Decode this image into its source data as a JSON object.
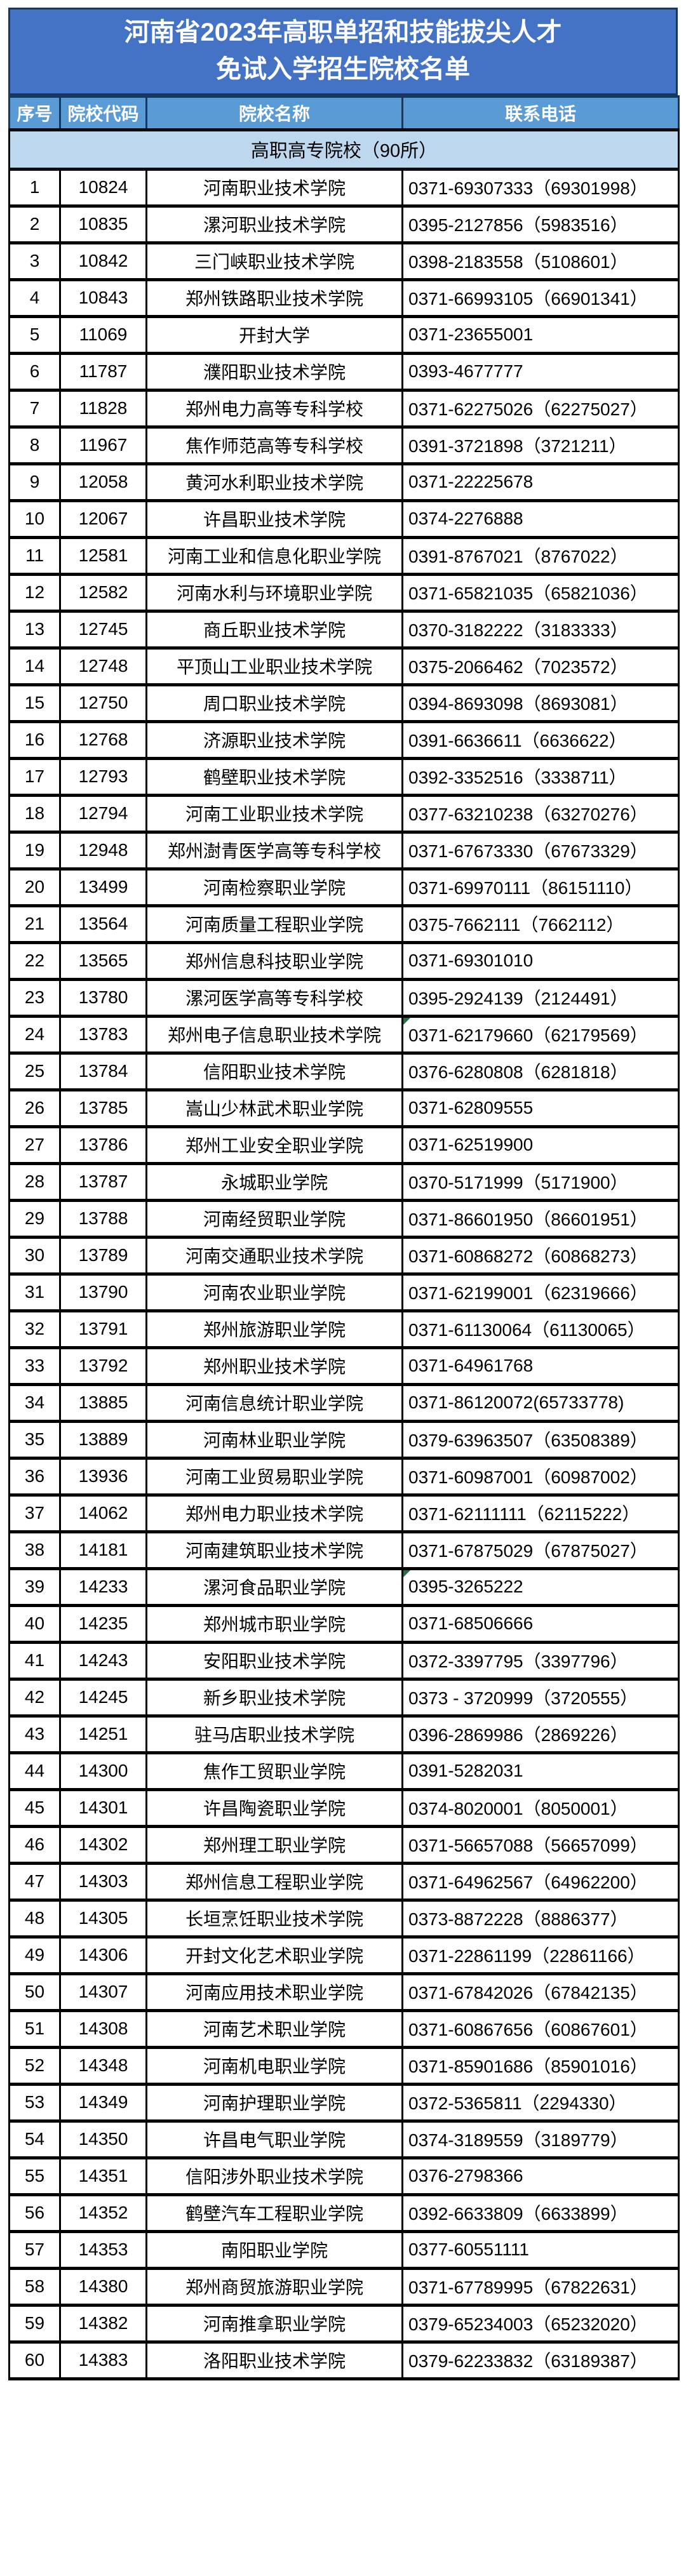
{
  "title": {
    "line1": "河南省2023年高职单招和技能拔尖人才",
    "line2": "免试入学招生院校名单"
  },
  "colors": {
    "title_bg": "#4472c4",
    "header_bg": "#5b9bd5",
    "section_bg": "#bdd7ee",
    "frame_border": "#17375e",
    "comment_marker": "#217346"
  },
  "table": {
    "headers": [
      "序号",
      "院校代码",
      "院校名称",
      "联系电话"
    ],
    "section_label": "高职高专院校（90所）",
    "rows": [
      {
        "no": "1",
        "code": "10824",
        "name": "河南职业技术学院",
        "phone": "0371-69307333（69301998）"
      },
      {
        "no": "2",
        "code": "10835",
        "name": "漯河职业技术学院",
        "phone": "0395-2127856（5983516）"
      },
      {
        "no": "3",
        "code": "10842",
        "name": "三门峡职业技术学院",
        "phone": "0398-2183558（5108601）"
      },
      {
        "no": "4",
        "code": "10843",
        "name": "郑州铁路职业技术学院",
        "phone": "0371-66993105（66901341）"
      },
      {
        "no": "5",
        "code": "11069",
        "name": "开封大学",
        "phone": "0371-23655001"
      },
      {
        "no": "6",
        "code": "11787",
        "name": "濮阳职业技术学院",
        "phone": "0393-4677777"
      },
      {
        "no": "7",
        "code": "11828",
        "name": "郑州电力高等专科学校",
        "phone": "0371-62275026（62275027）"
      },
      {
        "no": "8",
        "code": "11967",
        "name": "焦作师范高等专科学校",
        "phone": "0391-3721898（3721211）"
      },
      {
        "no": "9",
        "code": "12058",
        "name": "黄河水利职业技术学院",
        "phone": "0371-22225678"
      },
      {
        "no": "10",
        "code": "12067",
        "name": "许昌职业技术学院",
        "phone": "0374-2276888"
      },
      {
        "no": "11",
        "code": "12581",
        "name": "河南工业和信息化职业学院",
        "phone": "0391-8767021（8767022）"
      },
      {
        "no": "12",
        "code": "12582",
        "name": "河南水利与环境职业学院",
        "phone": "0371-65821035（65821036）"
      },
      {
        "no": "13",
        "code": "12745",
        "name": "商丘职业技术学院",
        "phone": "0370-3182222（3183333）"
      },
      {
        "no": "14",
        "code": "12748",
        "name": "平顶山工业职业技术学院",
        "phone": "0375-2066462（7023572）"
      },
      {
        "no": "15",
        "code": "12750",
        "name": "周口职业技术学院",
        "phone": "0394-8693098（8693081）"
      },
      {
        "no": "16",
        "code": "12768",
        "name": "济源职业技术学院",
        "phone": "0391-6636611（6636622）"
      },
      {
        "no": "17",
        "code": "12793",
        "name": "鹤壁职业技术学院",
        "phone": "0392-3352516（3338711）"
      },
      {
        "no": "18",
        "code": "12794",
        "name": "河南工业职业技术学院",
        "phone": "0377-63210238（63270276）"
      },
      {
        "no": "19",
        "code": "12948",
        "name": "郑州澍青医学高等专科学校",
        "phone": "0371-67673330（67673329）"
      },
      {
        "no": "20",
        "code": "13499",
        "name": "河南检察职业学院",
        "phone": "0371-69970111（86151110）"
      },
      {
        "no": "21",
        "code": "13564",
        "name": "河南质量工程职业学院",
        "phone": "0375-7662111（7662112）"
      },
      {
        "no": "22",
        "code": "13565",
        "name": "郑州信息科技职业学院",
        "phone": "0371-69301010"
      },
      {
        "no": "23",
        "code": "13780",
        "name": "漯河医学高等专科学校",
        "phone": "0395-2924139（2124491）"
      },
      {
        "no": "24",
        "code": "13783",
        "name": "郑州电子信息职业技术学院",
        "phone": "0371-62179660（62179569）",
        "comment_marker": true
      },
      {
        "no": "25",
        "code": "13784",
        "name": "信阳职业技术学院",
        "phone": "0376-6280808（6281818）"
      },
      {
        "no": "26",
        "code": "13785",
        "name": "嵩山少林武术职业学院",
        "phone": "0371-62809555"
      },
      {
        "no": "27",
        "code": "13786",
        "name": "郑州工业安全职业学院",
        "phone": "0371-62519900"
      },
      {
        "no": "28",
        "code": "13787",
        "name": "永城职业学院",
        "phone": "0370-5171999（5171900）"
      },
      {
        "no": "29",
        "code": "13788",
        "name": "河南经贸职业学院",
        "phone": "0371-86601950（86601951）"
      },
      {
        "no": "30",
        "code": "13789",
        "name": "河南交通职业技术学院",
        "phone": "0371-60868272（60868273）"
      },
      {
        "no": "31",
        "code": "13790",
        "name": "河南农业职业学院",
        "phone": "0371-62199001（62319666）"
      },
      {
        "no": "32",
        "code": "13791",
        "name": "郑州旅游职业学院",
        "phone": "0371-61130064（61130065）"
      },
      {
        "no": "33",
        "code": "13792",
        "name": "郑州职业技术学院",
        "phone": "0371-64961768"
      },
      {
        "no": "34",
        "code": "13885",
        "name": "河南信息统计职业学院",
        "phone": "0371-86120072(65733778)"
      },
      {
        "no": "35",
        "code": "13889",
        "name": "河南林业职业学院",
        "phone": "0379-63963507（63508389）"
      },
      {
        "no": "36",
        "code": "13936",
        "name": "河南工业贸易职业学院",
        "phone": "0371-60987001（60987002）"
      },
      {
        "no": "37",
        "code": "14062",
        "name": "郑州电力职业技术学院",
        "phone": "0371-62111111（62115222）"
      },
      {
        "no": "38",
        "code": "14181",
        "name": "河南建筑职业技术学院",
        "phone": "0371-67875029（67875027）"
      },
      {
        "no": "39",
        "code": "14233",
        "name": "漯河食品职业学院",
        "phone": "0395-3265222",
        "comment_marker": true
      },
      {
        "no": "40",
        "code": "14235",
        "name": "郑州城市职业学院",
        "phone": "0371-68506666"
      },
      {
        "no": "41",
        "code": "14243",
        "name": "安阳职业技术学院",
        "phone": "0372-3397795（3397796）"
      },
      {
        "no": "42",
        "code": "14245",
        "name": "新乡职业技术学院",
        "phone": "0373 - 3720999（3720555）"
      },
      {
        "no": "43",
        "code": "14251",
        "name": "驻马店职业技术学院",
        "phone": "0396-2869986（2869226）"
      },
      {
        "no": "44",
        "code": "14300",
        "name": "焦作工贸职业学院",
        "phone": "0391-5282031"
      },
      {
        "no": "45",
        "code": "14301",
        "name": "许昌陶瓷职业学院",
        "phone": "0374-8020001（8050001）"
      },
      {
        "no": "46",
        "code": "14302",
        "name": "郑州理工职业学院",
        "phone": "0371-56657088（56657099）"
      },
      {
        "no": "47",
        "code": "14303",
        "name": "郑州信息工程职业学院",
        "phone": "0371-64962567（64962200）"
      },
      {
        "no": "48",
        "code": "14305",
        "name": "长垣烹饪职业技术学院",
        "phone": "0373-8872228（8886377）"
      },
      {
        "no": "49",
        "code": "14306",
        "name": "开封文化艺术职业学院",
        "phone": "0371-22861199（22861166）"
      },
      {
        "no": "50",
        "code": "14307",
        "name": "河南应用技术职业学院",
        "phone": "0371-67842026（67842135）"
      },
      {
        "no": "51",
        "code": "14308",
        "name": "河南艺术职业学院",
        "phone": "0371-60867656（60867601）"
      },
      {
        "no": "52",
        "code": "14348",
        "name": "河南机电职业学院",
        "phone": "0371-85901686（85901016）"
      },
      {
        "no": "53",
        "code": "14349",
        "name": "河南护理职业学院",
        "phone": "0372-5365811（2294330）"
      },
      {
        "no": "54",
        "code": "14350",
        "name": "许昌电气职业学院",
        "phone": "0374-3189559（3189779）"
      },
      {
        "no": "55",
        "code": "14351",
        "name": "信阳涉外职业技术学院",
        "phone": "0376-2798366"
      },
      {
        "no": "56",
        "code": "14352",
        "name": "鹤壁汽车工程职业学院",
        "phone": "0392-6633809（6633899）"
      },
      {
        "no": "57",
        "code": "14353",
        "name": "南阳职业学院",
        "phone": "0377-60551111"
      },
      {
        "no": "58",
        "code": "14380",
        "name": "郑州商贸旅游职业学院",
        "phone": "0371-67789995（67822631）"
      },
      {
        "no": "59",
        "code": "14382",
        "name": "河南推拿职业学院",
        "phone": "0379-65234003（65232020）"
      },
      {
        "no": "60",
        "code": "14383",
        "name": "洛阳职业技术学院",
        "phone": "0379-62233832（63189387）"
      }
    ]
  }
}
